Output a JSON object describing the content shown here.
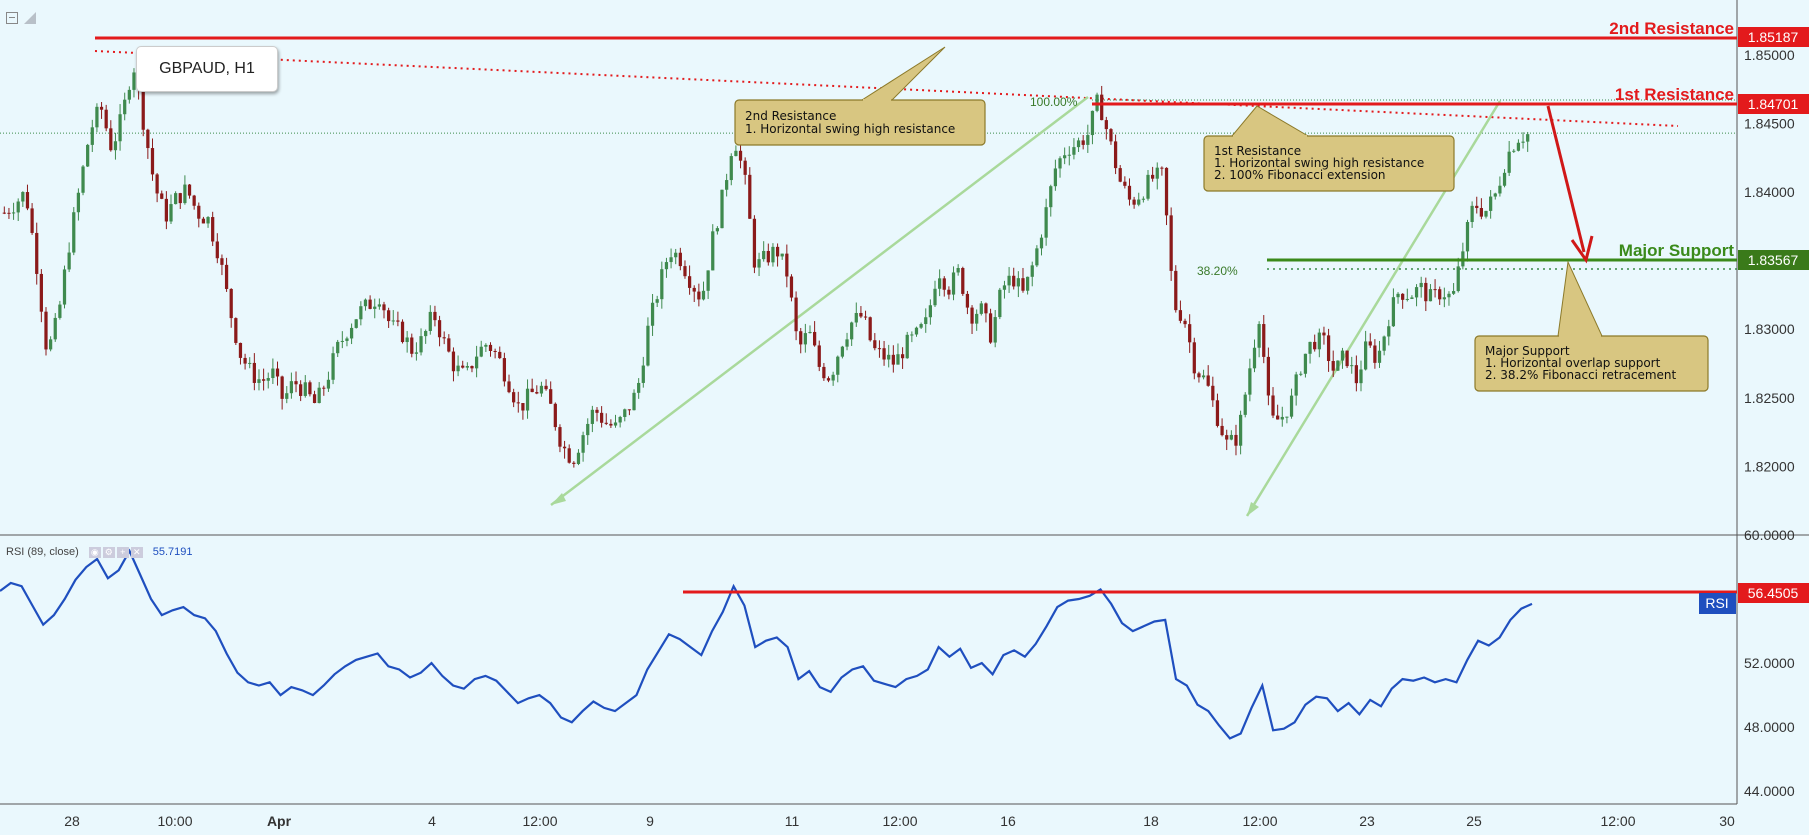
{
  "chart_data": [
    {
      "type": "candlestick",
      "title": "GBPAUD, H1",
      "symbol": "GBPAUD",
      "interval": "H1",
      "ylim": [
        1.815,
        1.854
      ],
      "y_ticks": [
        "1.85000",
        "1.84500",
        "1.84000",
        "1.83500",
        "1.83000",
        "1.82500",
        "1.82000"
      ],
      "x_tick_labels": [
        "28",
        "10:00",
        "Apr",
        "4",
        "12:00",
        "9",
        "11",
        "12:00",
        "16",
        "18",
        "12:00",
        "23",
        "25",
        "12:00",
        "30"
      ],
      "levels": [
        {
          "name": "2nd Resistance",
          "value": "1.85187",
          "color": "#e31a1c"
        },
        {
          "name": "1st Resistance",
          "value": "1.84701",
          "color": "#e31a1c"
        },
        {
          "name": "Major Support",
          "value": "1.83567",
          "color": "#3a8a1a"
        }
      ],
      "fib_labels": [
        "100.00%",
        "38.20%"
      ],
      "current_price_line": 1.8443,
      "close_path": [
        [
          0,
          1.8385
        ],
        [
          1,
          1.8392
        ],
        [
          2,
          1.84
        ],
        [
          3,
          1.8348
        ],
        [
          4,
          1.8282
        ],
        [
          5,
          1.8308
        ],
        [
          6,
          1.836
        ],
        [
          7,
          1.8402
        ],
        [
          8,
          1.8445
        ],
        [
          9,
          1.8462
        ],
        [
          10,
          1.8432
        ],
        [
          11,
          1.8455
        ],
        [
          12,
          1.8495
        ],
        [
          13,
          1.845
        ],
        [
          14,
          1.8405
        ],
        [
          15,
          1.8382
        ],
        [
          16,
          1.8395
        ],
        [
          17,
          1.8402
        ],
        [
          18,
          1.8385
        ],
        [
          19,
          1.838
        ],
        [
          20,
          1.8355
        ],
        [
          21,
          1.8315
        ],
        [
          22,
          1.8282
        ],
        [
          23,
          1.8268
        ],
        [
          24,
          1.8262
        ],
        [
          25,
          1.8268
        ],
        [
          26,
          1.8248
        ],
        [
          27,
          1.8262
        ],
        [
          28,
          1.8255
        ],
        [
          29,
          1.8245
        ],
        [
          30,
          1.8262
        ],
        [
          31,
          1.8285
        ],
        [
          32,
          1.83
        ],
        [
          33,
          1.8312
        ],
        [
          34,
          1.8318
        ],
        [
          35,
          1.8325
        ],
        [
          36,
          1.8302
        ],
        [
          37,
          1.8298
        ],
        [
          38,
          1.8285
        ],
        [
          39,
          1.8292
        ],
        [
          40,
          1.8312
        ],
        [
          41,
          1.829
        ],
        [
          42,
          1.8272
        ],
        [
          43,
          1.8265
        ],
        [
          44,
          1.8282
        ],
        [
          45,
          1.829
        ],
        [
          46,
          1.828
        ],
        [
          47,
          1.8262
        ],
        [
          48,
          1.8242
        ],
        [
          49,
          1.8252
        ],
        [
          50,
          1.8258
        ],
        [
          51,
          1.8242
        ],
        [
          52,
          1.8215
        ],
        [
          53,
          1.8205
        ],
        [
          54,
          1.8225
        ],
        [
          55,
          1.8242
        ],
        [
          56,
          1.8232
        ],
        [
          57,
          1.8228
        ],
        [
          58,
          1.824
        ],
        [
          59,
          1.8255
        ],
        [
          60,
          1.83
        ],
        [
          61,
          1.833
        ],
        [
          62,
          1.8358
        ],
        [
          63,
          1.8352
        ],
        [
          64,
          1.8335
        ],
        [
          65,
          1.8322
        ],
        [
          66,
          1.8365
        ],
        [
          67,
          1.8398
        ],
        [
          68,
          1.8442
        ],
        [
          69,
          1.841
        ],
        [
          70,
          1.8345
        ],
        [
          71,
          1.8352
        ],
        [
          72,
          1.8358
        ],
        [
          73,
          1.834
        ],
        [
          74,
          1.8285
        ],
        [
          75,
          1.8298
        ],
        [
          76,
          1.8272
        ],
        [
          77,
          1.8265
        ],
        [
          78,
          1.829
        ],
        [
          79,
          1.8305
        ],
        [
          80,
          1.831
        ],
        [
          81,
          1.8285
        ],
        [
          82,
          1.828
        ],
        [
          83,
          1.8275
        ],
        [
          84,
          1.8288
        ],
        [
          85,
          1.8295
        ],
        [
          86,
          1.8305
        ],
        [
          87,
          1.8345
        ],
        [
          88,
          1.833
        ],
        [
          89,
          1.8342
        ],
        [
          90,
          1.831
        ],
        [
          91,
          1.8315
        ],
        [
          92,
          1.8295
        ],
        [
          93,
          1.833
        ],
        [
          94,
          1.8338
        ],
        [
          95,
          1.8325
        ],
        [
          96,
          1.835
        ],
        [
          97,
          1.8382
        ],
        [
          98,
          1.8418
        ],
        [
          99,
          1.8432
        ],
        [
          100,
          1.8435
        ],
        [
          101,
          1.8442
        ],
        [
          102,
          1.8468
        ],
        [
          103,
          1.8438
        ],
        [
          104,
          1.8408
        ],
        [
          105,
          1.8392
        ],
        [
          106,
          1.84
        ],
        [
          107,
          1.841
        ],
        [
          108,
          1.8412
        ],
        [
          109,
          1.8318
        ],
        [
          110,
          1.8308
        ],
        [
          111,
          1.8272
        ],
        [
          112,
          1.8262
        ],
        [
          113,
          1.8238
        ],
        [
          114,
          1.8215
        ],
        [
          115,
          1.8222
        ],
        [
          116,
          1.8268
        ],
        [
          117,
          1.8312
        ],
        [
          118,
          1.8232
        ],
        [
          119,
          1.8235
        ],
        [
          120,
          1.8248
        ],
        [
          121,
          1.8278
        ],
        [
          122,
          1.8292
        ],
        [
          123,
          1.829
        ],
        [
          124,
          1.8268
        ],
        [
          125,
          1.8282
        ],
        [
          126,
          1.8262
        ],
        [
          127,
          1.8288
        ],
        [
          128,
          1.8278
        ],
        [
          129,
          1.8308
        ],
        [
          130,
          1.8328
        ],
        [
          131,
          1.8325
        ],
        [
          132,
          1.833
        ],
        [
          133,
          1.8322
        ],
        [
          134,
          1.8328
        ],
        [
          135,
          1.8322
        ],
        [
          136,
          1.836
        ],
        [
          137,
          1.8392
        ],
        [
          138,
          1.8385
        ],
        [
          139,
          1.8398
        ],
        [
          140,
          1.8425
        ],
        [
          141,
          1.844
        ],
        [
          142,
          1.8442
        ]
      ]
    },
    {
      "type": "line",
      "title": "RSI (89, close)",
      "series": [
        {
          "name": "RSI",
          "value_label": "55.7191"
        }
      ],
      "ylim": [
        43.2,
        60.0
      ],
      "y_ticks": [
        "60.0000",
        "52.0000",
        "48.0000",
        "44.0000"
      ],
      "level": {
        "value": "56.4505",
        "color": "#e31a1c"
      },
      "badge": "RSI",
      "values": [
        56.5,
        57.0,
        56.8,
        55.6,
        54.4,
        55.0,
        56.0,
        57.2,
        58.0,
        58.5,
        57.3,
        57.8,
        59.0,
        57.5,
        56.0,
        55.0,
        55.3,
        55.5,
        55.0,
        54.8,
        54.0,
        52.6,
        51.4,
        50.8,
        50.6,
        50.8,
        50.0,
        50.5,
        50.3,
        50.0,
        50.6,
        51.3,
        51.8,
        52.2,
        52.4,
        52.6,
        51.8,
        51.6,
        51.1,
        51.4,
        52.0,
        51.2,
        50.6,
        50.4,
        51.0,
        51.2,
        50.9,
        50.2,
        49.5,
        49.8,
        50.0,
        49.5,
        48.6,
        48.3,
        49.0,
        49.6,
        49.2,
        49.0,
        49.5,
        50.0,
        51.6,
        52.7,
        53.8,
        53.5,
        53.0,
        52.5,
        54.0,
        55.2,
        56.8,
        55.6,
        53.0,
        53.4,
        53.6,
        53.0,
        51.0,
        51.5,
        50.5,
        50.2,
        51.1,
        51.6,
        51.8,
        50.9,
        50.7,
        50.5,
        51.0,
        51.2,
        51.6,
        53.0,
        52.4,
        52.9,
        51.7,
        52.0,
        51.3,
        52.5,
        52.8,
        52.4,
        53.2,
        54.3,
        55.5,
        55.9,
        56.0,
        56.2,
        56.6,
        55.7,
        54.5,
        54.0,
        54.3,
        54.6,
        54.7,
        51.0,
        50.6,
        49.4,
        49.0,
        48.1,
        47.3,
        47.6,
        49.2,
        50.6,
        47.8,
        47.9,
        48.3,
        49.4,
        49.9,
        49.8,
        49.0,
        49.5,
        48.8,
        49.7,
        49.3,
        50.4,
        51.0,
        50.9,
        51.1,
        50.8,
        51.0,
        50.8,
        52.2,
        53.4,
        53.1,
        53.6,
        54.7,
        55.4,
        55.7
      ]
    }
  ],
  "annotations": {
    "second_resistance_box": {
      "title": "2nd Resistance",
      "lines": [
        "1. Horizontal swing high resistance"
      ]
    },
    "first_resistance_box": {
      "title": "1st Resistance",
      "lines": [
        "1. Horizontal swing high resistance",
        "2. 100% Fibonacci extension"
      ]
    },
    "major_support_box": {
      "title": "Major Support",
      "lines": [
        "1. Horizontal overlap support",
        "2. 38.2% Fibonacci retracement"
      ]
    }
  },
  "colors": {
    "background": "#eaf8fd",
    "up_candle": "#3f8a4e",
    "down_candle": "#8b1a1a",
    "resistance": "#e31a1c",
    "support": "#3a8a1a",
    "rsi_line": "#1f4fbf",
    "fib_line": "#a9d99b",
    "callout_fill": "#d8c681",
    "callout_border": "#8c7a2a"
  }
}
